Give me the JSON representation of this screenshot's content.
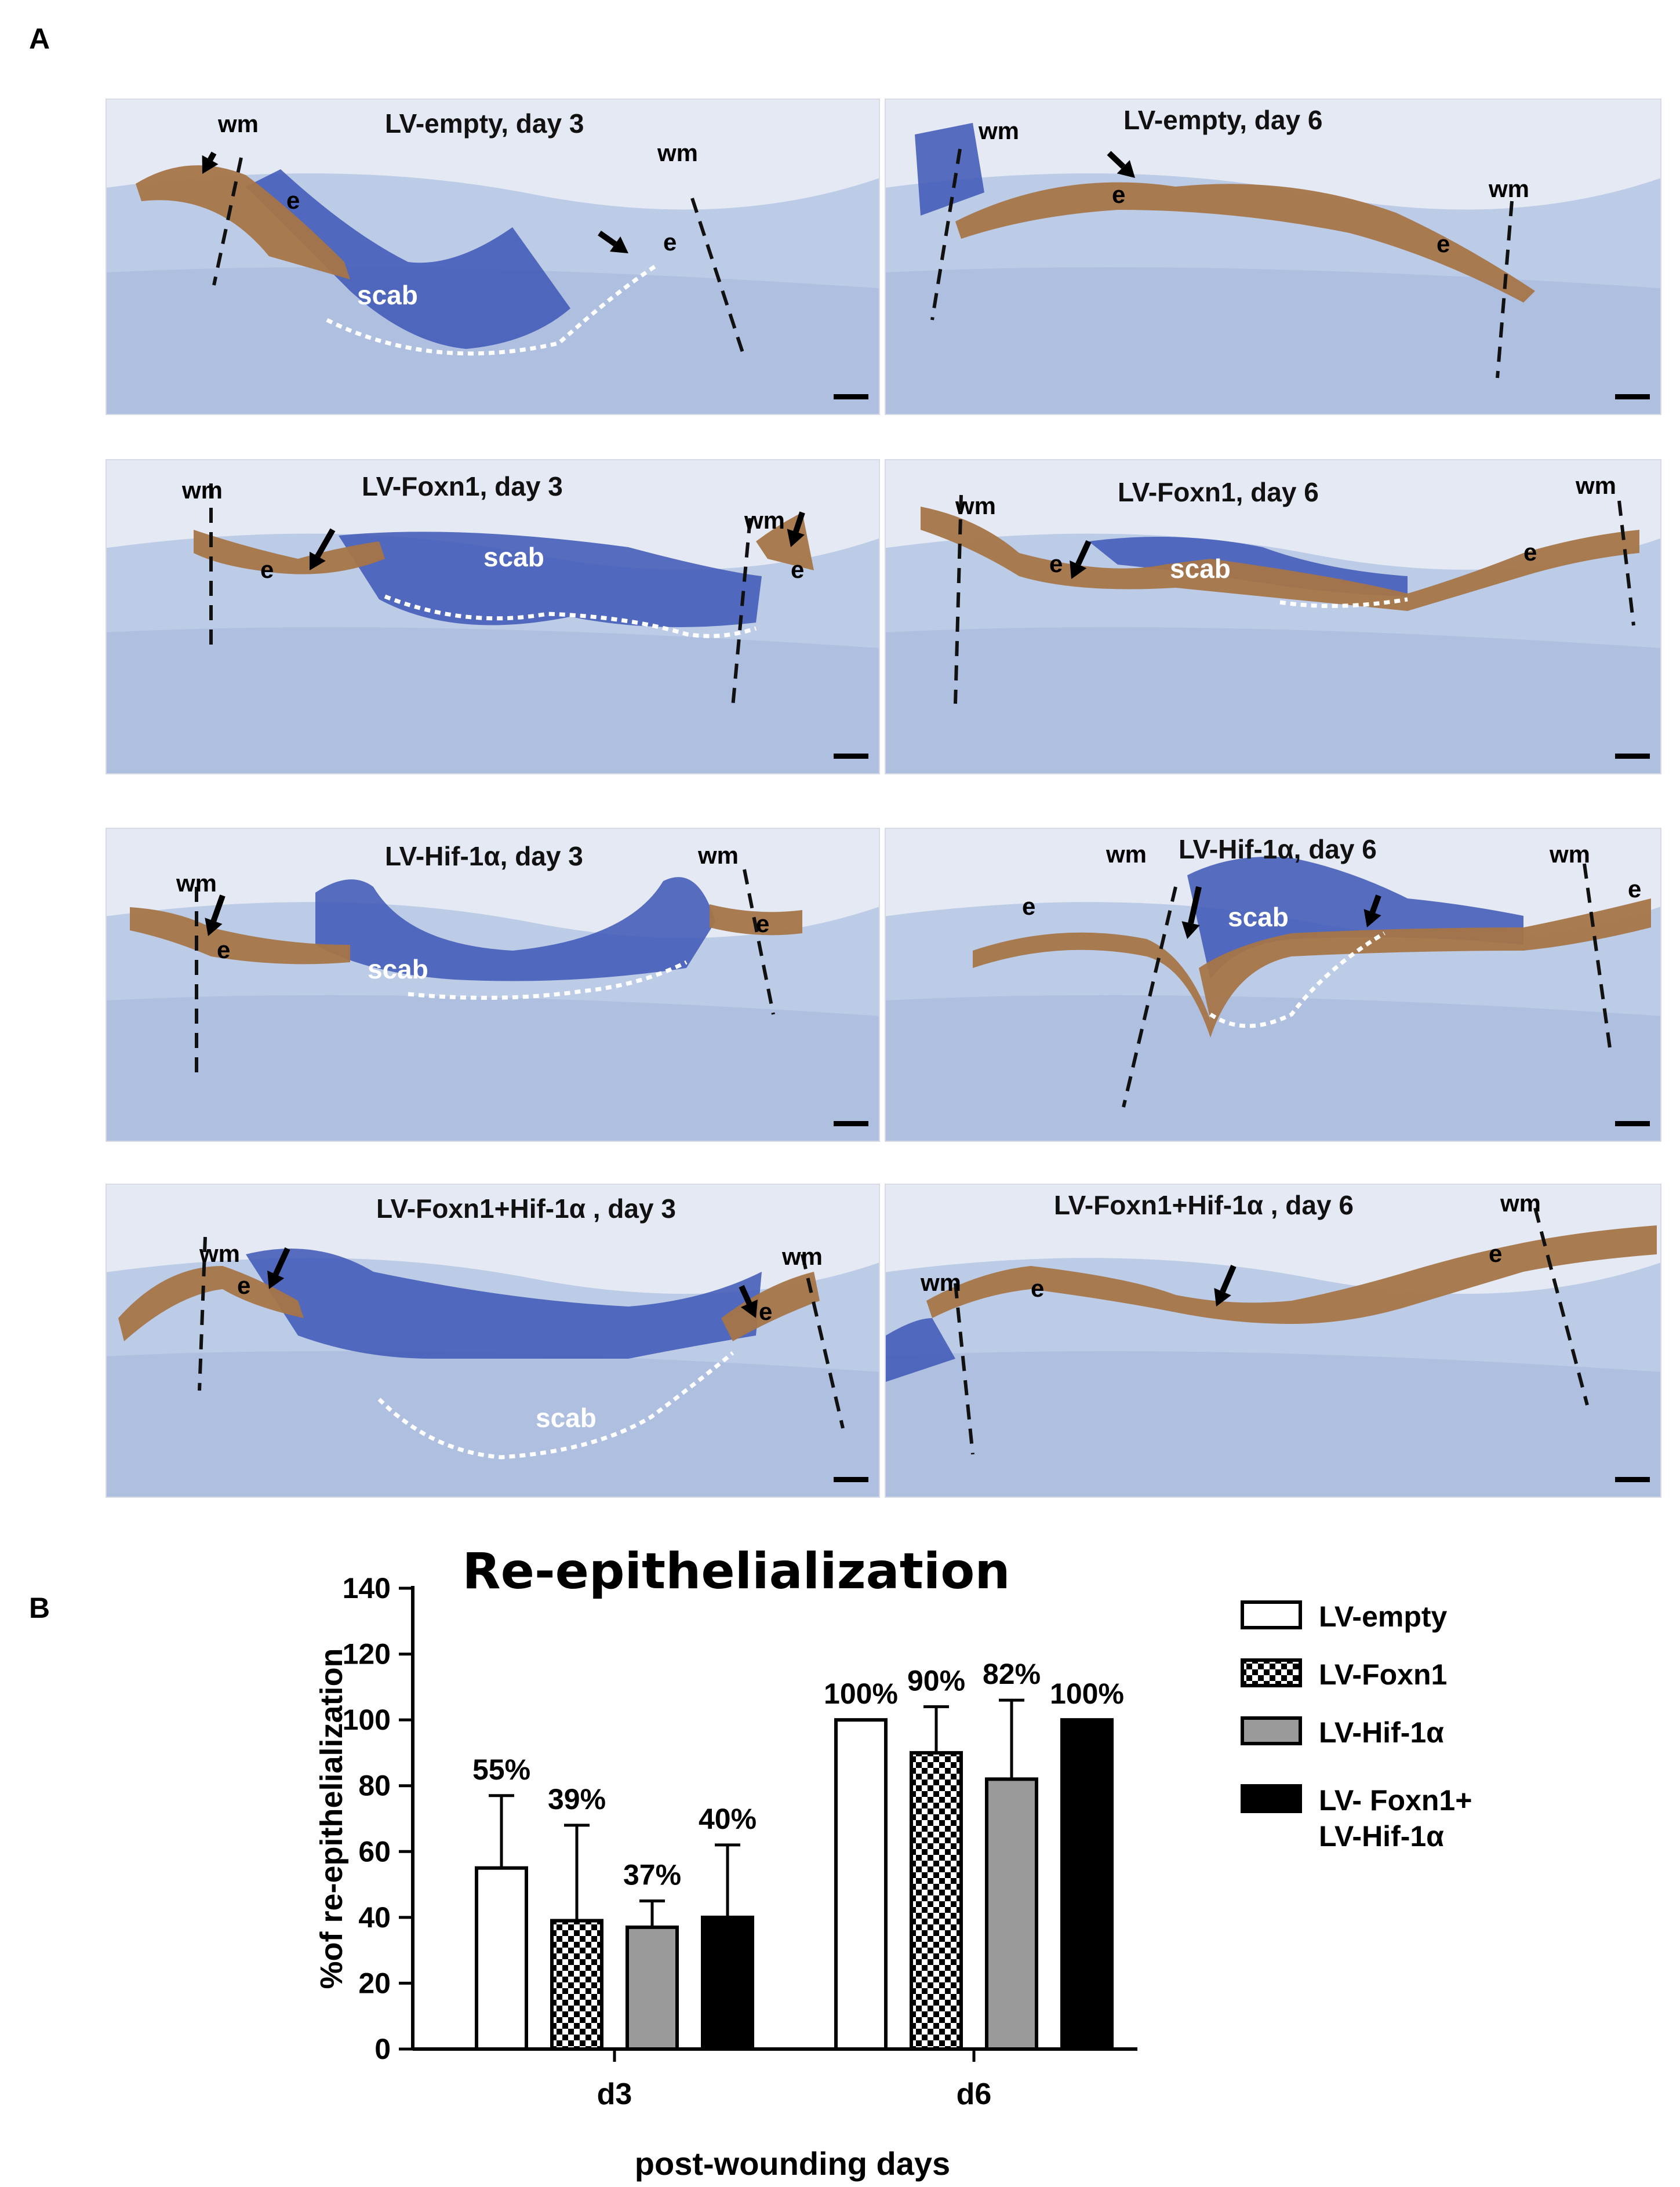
{
  "panels": {
    "a": "A",
    "b": "B"
  },
  "micrographs": [
    {
      "title": "LV-empty, day 3",
      "labels": {
        "wm1": "wm",
        "wm2": "wm",
        "e1": "e",
        "e2": "e",
        "scab": "scab"
      }
    },
    {
      "title": "LV-empty, day 6",
      "labels": {
        "wm1": "wm",
        "wm2": "wm",
        "e1": "e",
        "e2": "e"
      }
    },
    {
      "title": "LV-Foxn1, day 3",
      "labels": {
        "wm1": "wm",
        "wm2": "wm",
        "e1": "e",
        "e2": "e",
        "scab": "scab"
      }
    },
    {
      "title": "LV-Foxn1, day 6",
      "labels": {
        "wm1": "wm",
        "wm2": "wm",
        "e1": "e",
        "e2": "e",
        "scab": "scab"
      }
    },
    {
      "title": "LV-Hif-1α, day 3",
      "labels": {
        "wm1": "wm",
        "wm2": "wm",
        "e1": "e",
        "e2": "e",
        "scab": "scab"
      }
    },
    {
      "title": "LV-Hif-1α, day 6",
      "labels": {
        "wm1": "wm",
        "wm2": "wm",
        "e1": "e",
        "e2": "e",
        "scab": "scab"
      }
    },
    {
      "title": "LV-Foxn1+Hif-1α , day 3",
      "labels": {
        "wm1": "wm",
        "wm2": "wm",
        "e1": "e",
        "e2": "e",
        "scab": "scab"
      }
    },
    {
      "title": "LV-Foxn1+Hif-1α , day 6",
      "labels": {
        "wm1": "wm",
        "wm2": "wm",
        "e1": "e",
        "e2": "e"
      }
    }
  ],
  "chart_data": {
    "type": "bar",
    "title": "Re-epithelialization",
    "xlabel": "post-wounding days",
    "ylabel": "%of re-epithelialization",
    "categories": [
      "d3",
      "d6"
    ],
    "ylim": [
      0,
      140
    ],
    "yticks": [
      0,
      20,
      40,
      60,
      80,
      100,
      120,
      140
    ],
    "series": [
      {
        "name": "LV-empty",
        "values": [
          55,
          100
        ],
        "errors": [
          22,
          0
        ],
        "labels": [
          "55%",
          "100%"
        ],
        "style": "white"
      },
      {
        "name": "LV-Foxn1",
        "values": [
          39,
          90
        ],
        "errors": [
          29,
          14
        ],
        "labels": [
          "39%",
          "90%"
        ],
        "style": "checker"
      },
      {
        "name": "LV-Hif-1α",
        "values": [
          37,
          82
        ],
        "errors": [
          8,
          24
        ],
        "labels": [
          "37%",
          "82%"
        ],
        "style": "gray"
      },
      {
        "name": "LV- Foxn1+\nLV-Hif-1α",
        "values": [
          40,
          100
        ],
        "errors": [
          22,
          0
        ],
        "labels": [
          "40%",
          "100%"
        ],
        "style": "black"
      }
    ],
    "legend_position": "top-right",
    "colors": {
      "gray": "#9a9a9a",
      "black": "#000000",
      "white": "#ffffff"
    }
  }
}
